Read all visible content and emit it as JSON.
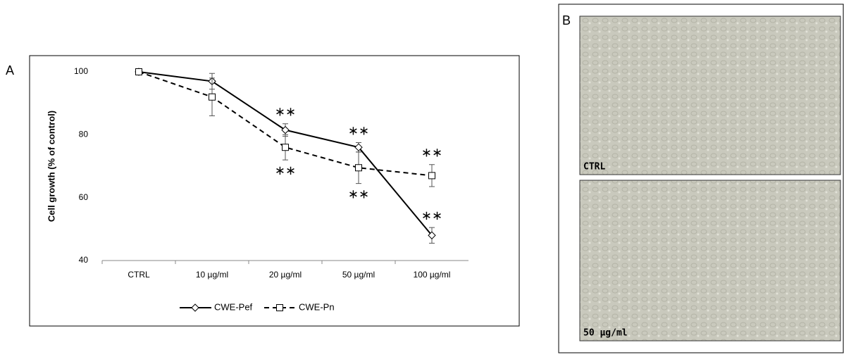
{
  "chart_data": {
    "type": "line",
    "y_label": "Cell growth (% of  control)",
    "categories": [
      "CTRL",
      "10 µg/ml",
      "20 µg/ml",
      "50 µg/ml",
      "100 µg/ml"
    ],
    "series": [
      {
        "name": "CWE-Pef",
        "color": "#000000",
        "line_style": "solid",
        "marker": "diamond",
        "values": [
          100,
          97,
          81.5,
          76,
          48
        ],
        "errors": [
          0,
          2.5,
          2,
          1.5,
          2.5
        ]
      },
      {
        "name": "CWE-Pn",
        "color": "#000000",
        "line_style": "dashed",
        "marker": "square",
        "values": [
          100,
          92,
          76,
          69.5,
          67
        ],
        "errors": [
          0,
          6,
          4,
          5,
          3.5
        ]
      }
    ],
    "annotations": [
      {
        "text": "∗∗",
        "series": 0,
        "category": 2,
        "side": "above"
      },
      {
        "text": "∗∗",
        "series": 1,
        "category": 2,
        "side": "below"
      },
      {
        "text": "∗∗",
        "series": 0,
        "category": 3,
        "side": "above"
      },
      {
        "text": "∗∗",
        "series": 1,
        "category": 3,
        "side": "below"
      },
      {
        "text": "∗∗",
        "series": 1,
        "category": 4,
        "side": "above"
      },
      {
        "text": "∗∗",
        "series": 0,
        "category": 4,
        "side": "above"
      }
    ],
    "ylim": [
      40,
      100
    ],
    "yticks": [
      40,
      60,
      80,
      100
    ],
    "grid": false,
    "legend": "bottom"
  },
  "panel_labels": [
    "A",
    "B"
  ],
  "images": [
    {
      "label": "CTRL"
    },
    {
      "label": "50 µg/ml"
    }
  ]
}
